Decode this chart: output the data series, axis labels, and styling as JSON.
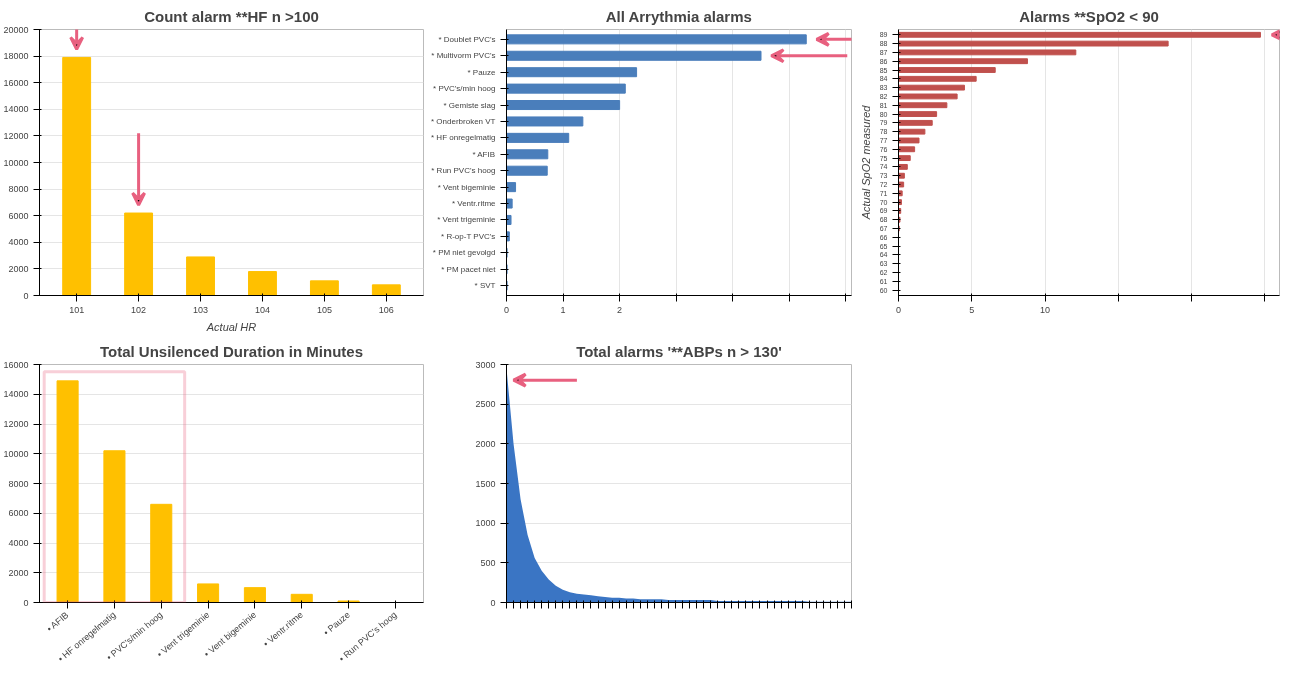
{
  "chart_data": [
    {
      "type": "bar",
      "title": "Count alarm **HF n >100",
      "xlabel": "Actual HR",
      "categories": [
        "101",
        "102",
        "103",
        "104",
        "105",
        "106"
      ],
      "values": [
        17900,
        6200,
        2900,
        1800,
        1100,
        800
      ],
      "color": "#ffc000",
      "ylim": [
        0,
        20000
      ],
      "yticks": [
        0,
        2000,
        4000,
        6000,
        8000,
        10000,
        12000,
        14000,
        16000,
        18000,
        20000
      ],
      "grid": "y"
    },
    {
      "type": "bar",
      "orientation": "horizontal",
      "title": "All Arrythmia alarms",
      "categories": [
        "* Doublet PVC's",
        "* Multivorm PVC's",
        "* Pauze",
        "* PVC's/min hoog",
        "* Gemiste slag",
        "* Onderbroken VT",
        "* HF onregelmatig",
        "* AFIB",
        "* Run PVC's hoog",
        "* Vent bigeminie",
        "* Ventr.ritme",
        "* Vent trigeminie",
        "* R-op-T PVC's",
        "* PM niet gevolgd",
        "* PM pacet niet",
        "* SVT"
      ],
      "values": [
        5.3,
        4.5,
        2.3,
        2.1,
        2.0,
        1.35,
        1.1,
        0.73,
        0.72,
        0.16,
        0.1,
        0.08,
        0.05,
        0.01,
        0.01,
        0.01
      ],
      "color": "#4a7ebb",
      "xlim": [
        0,
        6.1
      ],
      "xticks": [
        0,
        1,
        2,
        {
          "value": 3,
          "label": null
        },
        {
          "value": 4,
          "label": null
        },
        {
          "value": 5,
          "label": null
        },
        {
          "value": 6,
          "label": null
        }
      ],
      "grid": "x"
    },
    {
      "type": "bar",
      "orientation": "horizontal",
      "title": "Alarms **SpO2 < 90",
      "ylabel": "Actual SpO2 measured",
      "categories": [
        "89",
        "88",
        "87",
        "86",
        "85",
        "84",
        "83",
        "82",
        "81",
        "80",
        "79",
        "78",
        "77",
        "76",
        "75",
        "74",
        "73",
        "72",
        "71",
        "70",
        "69",
        "68",
        "67",
        "66",
        "65",
        "64",
        "63",
        "62",
        "61",
        "60"
      ],
      "values": [
        24.7,
        18.4,
        12.1,
        8.8,
        6.6,
        5.3,
        4.5,
        4.0,
        3.3,
        2.6,
        2.3,
        1.8,
        1.4,
        1.1,
        0.8,
        0.6,
        0.4,
        0.35,
        0.25,
        0.2,
        0.15,
        0.1,
        0.05,
        0,
        0,
        0,
        0,
        0,
        0,
        0
      ],
      "color": "#c0504d",
      "xlim": [
        0,
        26
      ],
      "xticks": [
        0,
        5,
        10,
        {
          "value": 15,
          "label": null
        },
        {
          "value": 20,
          "label": null
        },
        {
          "value": 25,
          "label": null
        }
      ],
      "grid": "x"
    },
    {
      "type": "bar",
      "title": "Total Unsilenced Duration in Minutes",
      "categories": [
        "• AFIB",
        "• HF onregelmatig",
        "• PVC's/min hoog",
        "• Vent trigeminie",
        "• Vent bigeminie",
        "• Ventr.ritme",
        "• Pauze",
        "• Run PVC's hoog"
      ],
      "values": [
        14900,
        10200,
        6600,
        1250,
        1000,
        550,
        100,
        0
      ],
      "color": "#ffc000",
      "ylim": [
        0,
        16000
      ],
      "yticks": [
        0,
        2000,
        4000,
        6000,
        8000,
        10000,
        12000,
        14000,
        16000
      ],
      "grid": "y"
    },
    {
      "type": "area",
      "title": "Total alarms '**ABPs n > 130'",
      "categories": [
        null,
        null,
        null,
        null,
        null,
        null,
        null,
        null,
        null,
        null,
        null,
        null,
        null,
        null,
        null,
        null,
        null,
        null,
        null,
        null,
        null,
        null,
        null,
        null,
        null,
        null,
        null,
        null,
        null,
        null,
        null,
        null,
        null,
        null,
        null,
        null,
        null,
        null,
        null,
        null,
        null,
        null,
        null,
        null,
        null,
        null,
        null,
        null,
        null,
        null
      ],
      "values": [
        2950,
        2000,
        1300,
        850,
        560,
        400,
        290,
        210,
        160,
        130,
        110,
        100,
        90,
        80,
        70,
        60,
        60,
        50,
        50,
        40,
        40,
        40,
        40,
        30,
        30,
        30,
        30,
        30,
        30,
        30,
        20,
        20,
        20,
        20,
        20,
        20,
        20,
        20,
        20,
        20,
        20,
        20,
        20,
        10,
        10,
        10,
        10,
        10,
        10,
        10
      ],
      "color": "#3a75c4",
      "ylim": [
        0,
        3000
      ],
      "yticks": [
        0,
        500,
        1000,
        1500,
        2000,
        2500,
        3000
      ],
      "grid": "y"
    }
  ]
}
